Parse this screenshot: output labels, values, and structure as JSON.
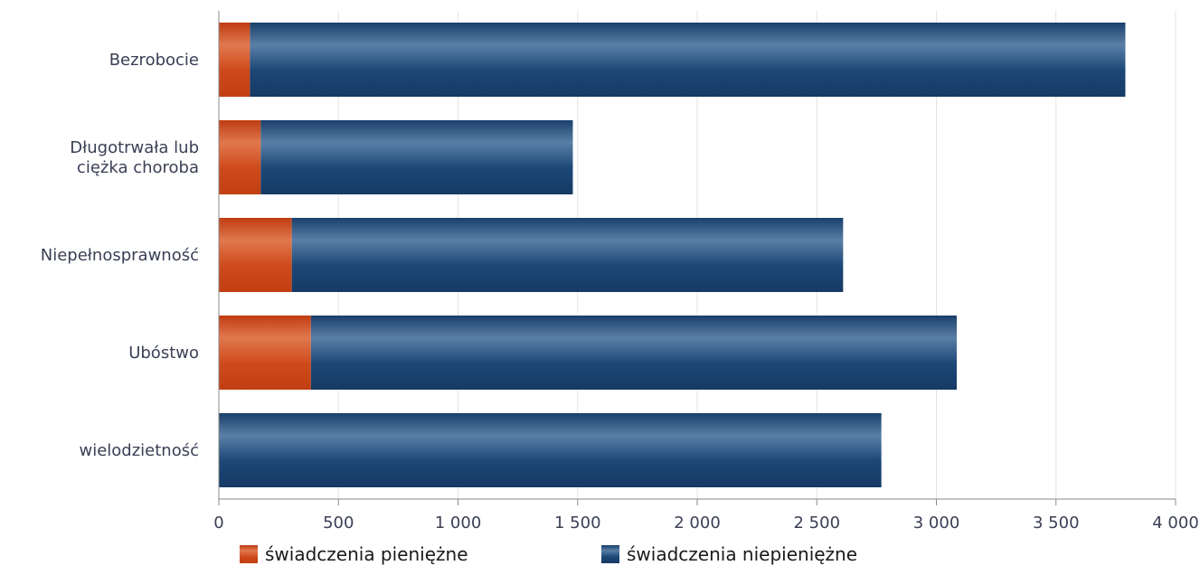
{
  "chart_data": {
    "type": "bar",
    "orientation": "horizontal",
    "stacked": true,
    "categories": [
      "Bezrobocie",
      "Długotrwała lub ciężka choroba",
      "Niepełnosprawność",
      "Ubóstwo",
      "wielodzietność"
    ],
    "category_lines": [
      [
        "Bezrobocie"
      ],
      [
        "Długotrwała lub",
        "ciężka choroba"
      ],
      [
        "Niepełnosprawność"
      ],
      [
        "Ubóstwo"
      ],
      [
        "wielodzietność"
      ]
    ],
    "series": [
      {
        "name": "świadczenia pieniężne",
        "color": "#d14a1e",
        "values": [
          130,
          175,
          305,
          385,
          0
        ]
      },
      {
        "name": "świadczenia niepieniężne",
        "color": "#1c4776",
        "values": [
          3660,
          1305,
          2305,
          2700,
          2770
        ]
      }
    ],
    "xlim": [
      0,
      4000
    ],
    "xticks": [
      0,
      500,
      1000,
      1500,
      2000,
      2500,
      3000,
      3500,
      4000
    ],
    "xtick_labels": [
      "0",
      "500",
      "1 000",
      "1 500",
      "2 000",
      "2 500",
      "3 000",
      "3 500",
      "4 000"
    ],
    "grid": "vertical",
    "legend_position": "bottom",
    "title": "",
    "xlabel": "",
    "ylabel": ""
  }
}
